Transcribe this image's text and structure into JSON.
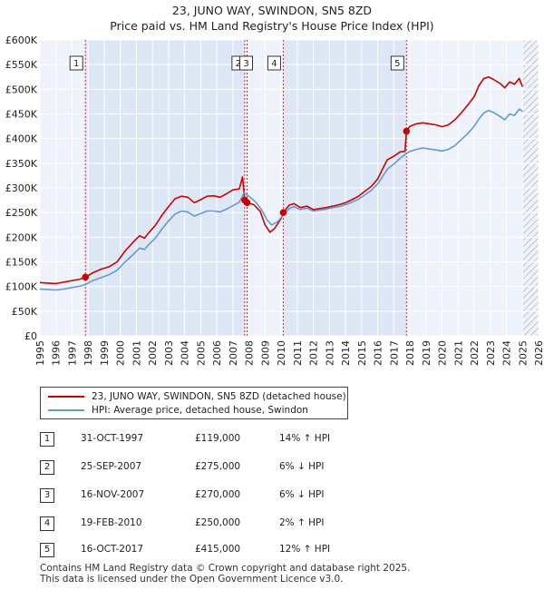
{
  "title_line1": "23, JUNO WAY, SWINDON, SN5 8ZD",
  "title_line2": "Price paid vs. HM Land Registry's House Price Index (HPI)",
  "legend": {
    "property_label": "23, JUNO WAY, SWINDON, SN5 8ZD (detached house)",
    "hpi_label": "HPI: Average price, detached house, Swindon"
  },
  "colors": {
    "property": "#cc0000",
    "hpi": "#6699cc",
    "shade": "#dde6f5",
    "grid": "#ffffff"
  },
  "transactions": [
    {
      "num": "1",
      "date": "31-OCT-1997",
      "price": "£119,000",
      "rel": "14% ↑ HPI"
    },
    {
      "num": "2",
      "date": "25-SEP-2007",
      "price": "£275,000",
      "rel": "6% ↓ HPI"
    },
    {
      "num": "3",
      "date": "16-NOV-2007",
      "price": "£270,000",
      "rel": "6% ↓ HPI"
    },
    {
      "num": "4",
      "date": "19-FEB-2010",
      "price": "£250,000",
      "rel": "2% ↑ HPI"
    },
    {
      "num": "5",
      "date": "16-OCT-2017",
      "price": "£415,000",
      "rel": "12% ↑ HPI"
    }
  ],
  "footer_line1": "Contains HM Land Registry data © Crown copyright and database right 2025.",
  "footer_line2": "This data is licensed under the Open Government Licence v3.0.",
  "chart_data": {
    "type": "line",
    "xlim": [
      1995,
      2026
    ],
    "ylim": [
      0,
      600000
    ],
    "x_ticks": [
      1995,
      1996,
      1997,
      1998,
      1999,
      2000,
      2001,
      2002,
      2003,
      2004,
      2005,
      2006,
      2007,
      2008,
      2009,
      2010,
      2011,
      2012,
      2013,
      2014,
      2015,
      2016,
      2017,
      2018,
      2019,
      2020,
      2021,
      2022,
      2023,
      2024,
      2025,
      2026
    ],
    "y_ticks": [
      0,
      50000,
      100000,
      150000,
      200000,
      250000,
      300000,
      350000,
      400000,
      450000,
      500000,
      550000,
      600000
    ],
    "y_tick_labels": [
      "£0",
      "£50K",
      "£100K",
      "£150K",
      "£200K",
      "£250K",
      "£300K",
      "£350K",
      "£400K",
      "£450K",
      "£500K",
      "£550K",
      "£600K"
    ],
    "shaded_bands": [
      [
        1997.83,
        2007.73
      ],
      [
        2010.13,
        2017.79
      ]
    ],
    "hatched_after": 2025.0,
    "sale_markers": [
      {
        "label": "1",
        "x": 1997.83,
        "y": 119000
      },
      {
        "label": "2",
        "x": 2007.73,
        "y": 275000
      },
      {
        "label": "3",
        "x": 2007.88,
        "y": 270000
      },
      {
        "label": "4",
        "x": 2010.13,
        "y": 250000
      },
      {
        "label": "5",
        "x": 2017.79,
        "y": 415000
      }
    ],
    "series": [
      {
        "name": "23, JUNO WAY, SWINDON, SN5 8ZD (detached house)",
        "points": [
          [
            1995,
            108000
          ],
          [
            1995.5,
            107000
          ],
          [
            1996,
            106000
          ],
          [
            1996.5,
            109000
          ],
          [
            1997,
            112000
          ],
          [
            1997.5,
            115000
          ],
          [
            1997.83,
            119000
          ],
          [
            1998.3,
            128000
          ],
          [
            1998.8,
            135000
          ],
          [
            1999.3,
            140000
          ],
          [
            1999.8,
            150000
          ],
          [
            2000.3,
            172000
          ],
          [
            2000.8,
            190000
          ],
          [
            2001.2,
            203000
          ],
          [
            2001.5,
            198000
          ],
          [
            2001.8,
            210000
          ],
          [
            2002.2,
            225000
          ],
          [
            2002.6,
            245000
          ],
          [
            2003,
            262000
          ],
          [
            2003.4,
            278000
          ],
          [
            2003.8,
            283000
          ],
          [
            2004.2,
            281000
          ],
          [
            2004.6,
            270000
          ],
          [
            2005,
            276000
          ],
          [
            2005.4,
            283000
          ],
          [
            2005.8,
            284000
          ],
          [
            2006.2,
            281000
          ],
          [
            2006.6,
            288000
          ],
          [
            2007,
            296000
          ],
          [
            2007.4,
            298000
          ],
          [
            2007.6,
            322000
          ],
          [
            2007.73,
            275000
          ],
          [
            2007.88,
            270000
          ],
          [
            2008.3,
            266000
          ],
          [
            2008.7,
            252000
          ],
          [
            2009,
            225000
          ],
          [
            2009.3,
            210000
          ],
          [
            2009.6,
            218000
          ],
          [
            2010,
            238000
          ],
          [
            2010.13,
            250000
          ],
          [
            2010.5,
            265000
          ],
          [
            2010.8,
            268000
          ],
          [
            2011.2,
            260000
          ],
          [
            2011.6,
            263000
          ],
          [
            2012,
            256000
          ],
          [
            2012.4,
            258000
          ],
          [
            2012.8,
            260000
          ],
          [
            2013.2,
            263000
          ],
          [
            2013.6,
            266000
          ],
          [
            2014,
            270000
          ],
          [
            2014.4,
            276000
          ],
          [
            2014.8,
            283000
          ],
          [
            2015.2,
            293000
          ],
          [
            2015.6,
            303000
          ],
          [
            2016,
            318000
          ],
          [
            2016.3,
            338000
          ],
          [
            2016.6,
            357000
          ],
          [
            2017,
            364000
          ],
          [
            2017.4,
            373000
          ],
          [
            2017.7,
            374000
          ],
          [
            2017.79,
            415000
          ],
          [
            2018,
            425000
          ],
          [
            2018.4,
            430000
          ],
          [
            2018.8,
            432000
          ],
          [
            2019.2,
            430000
          ],
          [
            2019.6,
            428000
          ],
          [
            2020,
            424000
          ],
          [
            2020.4,
            428000
          ],
          [
            2020.8,
            438000
          ],
          [
            2021.2,
            452000
          ],
          [
            2021.6,
            468000
          ],
          [
            2022,
            485000
          ],
          [
            2022.3,
            508000
          ],
          [
            2022.6,
            522000
          ],
          [
            2022.9,
            525000
          ],
          [
            2023.2,
            520000
          ],
          [
            2023.6,
            512000
          ],
          [
            2023.9,
            503000
          ],
          [
            2024.2,
            515000
          ],
          [
            2024.5,
            510000
          ],
          [
            2024.8,
            522000
          ],
          [
            2025,
            505000
          ]
        ]
      },
      {
        "name": "HPI: Average price, detached house, Swindon",
        "points": [
          [
            1995,
            95000
          ],
          [
            1995.5,
            94000
          ],
          [
            1996,
            93000
          ],
          [
            1996.5,
            95000
          ],
          [
            1997,
            98000
          ],
          [
            1997.5,
            101000
          ],
          [
            1997.83,
            104000
          ],
          [
            1998.3,
            112000
          ],
          [
            1998.8,
            118000
          ],
          [
            1999.3,
            124000
          ],
          [
            1999.8,
            133000
          ],
          [
            2000.3,
            150000
          ],
          [
            2000.8,
            165000
          ],
          [
            2001.2,
            178000
          ],
          [
            2001.5,
            175000
          ],
          [
            2001.8,
            186000
          ],
          [
            2002.2,
            199000
          ],
          [
            2002.6,
            217000
          ],
          [
            2003,
            233000
          ],
          [
            2003.4,
            247000
          ],
          [
            2003.8,
            253000
          ],
          [
            2004.2,
            251000
          ],
          [
            2004.6,
            243000
          ],
          [
            2005,
            248000
          ],
          [
            2005.4,
            253000
          ],
          [
            2005.8,
            253000
          ],
          [
            2006.2,
            251000
          ],
          [
            2006.6,
            257000
          ],
          [
            2007,
            264000
          ],
          [
            2007.4,
            271000
          ],
          [
            2007.7,
            290000
          ],
          [
            2008,
            283000
          ],
          [
            2008.4,
            272000
          ],
          [
            2008.8,
            255000
          ],
          [
            2009.1,
            236000
          ],
          [
            2009.4,
            225000
          ],
          [
            2009.8,
            232000
          ],
          [
            2010.13,
            245000
          ],
          [
            2010.5,
            258000
          ],
          [
            2010.8,
            262000
          ],
          [
            2011.2,
            256000
          ],
          [
            2011.6,
            259000
          ],
          [
            2012,
            253000
          ],
          [
            2012.4,
            255000
          ],
          [
            2012.8,
            257000
          ],
          [
            2013.2,
            260000
          ],
          [
            2013.6,
            262000
          ],
          [
            2014,
            266000
          ],
          [
            2014.4,
            271000
          ],
          [
            2014.8,
            277000
          ],
          [
            2015.2,
            286000
          ],
          [
            2015.6,
            295000
          ],
          [
            2016,
            308000
          ],
          [
            2016.3,
            323000
          ],
          [
            2016.6,
            338000
          ],
          [
            2017,
            348000
          ],
          [
            2017.4,
            360000
          ],
          [
            2017.79,
            370000
          ],
          [
            2018,
            374000
          ],
          [
            2018.4,
            378000
          ],
          [
            2018.8,
            381000
          ],
          [
            2019.2,
            379000
          ],
          [
            2019.6,
            377000
          ],
          [
            2020,
            375000
          ],
          [
            2020.4,
            378000
          ],
          [
            2020.8,
            386000
          ],
          [
            2021.2,
            398000
          ],
          [
            2021.6,
            410000
          ],
          [
            2022,
            425000
          ],
          [
            2022.3,
            440000
          ],
          [
            2022.6,
            452000
          ],
          [
            2022.9,
            457000
          ],
          [
            2023.2,
            453000
          ],
          [
            2023.6,
            445000
          ],
          [
            2023.9,
            438000
          ],
          [
            2024.2,
            450000
          ],
          [
            2024.5,
            447000
          ],
          [
            2024.8,
            460000
          ],
          [
            2025,
            455000
          ]
        ]
      }
    ]
  }
}
